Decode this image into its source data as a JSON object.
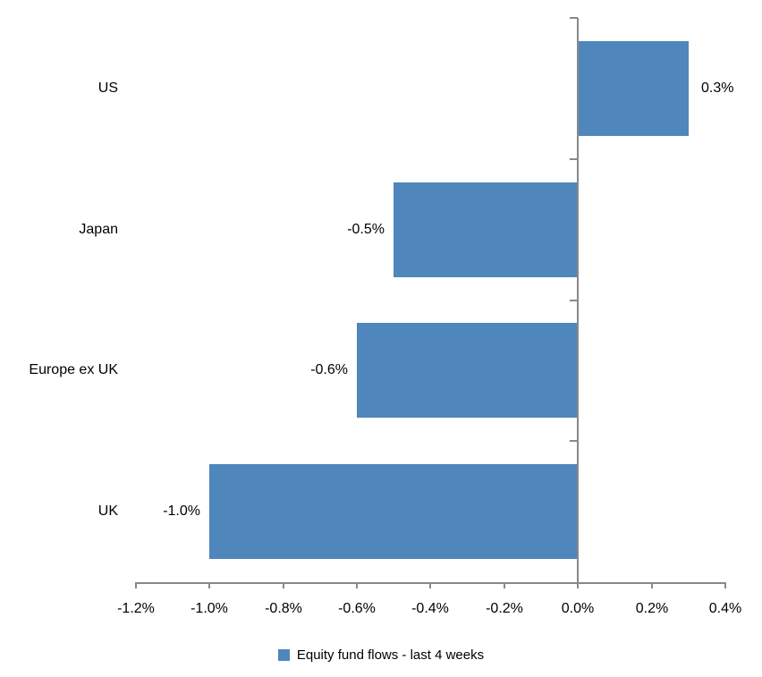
{
  "chart_data": {
    "type": "bar",
    "orientation": "horizontal",
    "title": "",
    "categories": [
      "US",
      "Japan",
      "Europe ex UK",
      "UK"
    ],
    "values": [
      0.3,
      -0.5,
      -0.6,
      -1.0
    ],
    "data_labels": [
      "0.3%",
      "-0.5%",
      "-0.6%",
      "-1.0%"
    ],
    "series_name": "Equity fund flows - last 4 weeks",
    "x_ticks": [
      "-1.2%",
      "-1.0%",
      "-0.8%",
      "-0.6%",
      "-0.4%",
      "-0.2%",
      "0.0%",
      "0.2%",
      "0.4%"
    ],
    "x_tick_values": [
      -1.2,
      -1.0,
      -0.8,
      -0.6,
      -0.4,
      -0.2,
      0.0,
      0.2,
      0.4
    ],
    "xlim": [
      -1.2,
      0.4
    ],
    "grid": false,
    "legend_position": "bottom",
    "bar_color": "#4F86BC",
    "axis_color": "#898989",
    "text_color": "#000000"
  },
  "legend": {
    "label": "Equity fund flows - last 4 weeks"
  }
}
